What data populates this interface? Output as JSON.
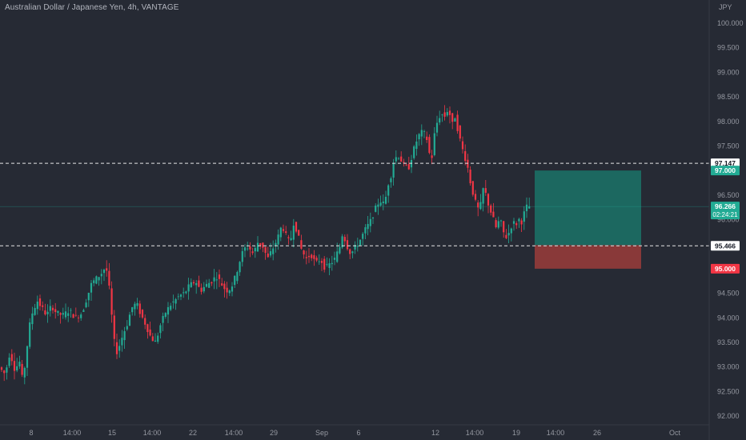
{
  "header": {
    "symbol_title": "Australian Dollar / Japanese Yen, 4h, VANTAGE",
    "currency": "JPY"
  },
  "colors": {
    "background": "#262a34",
    "up": "#22ab94",
    "down": "#f23645",
    "axis_text": "#9598a1",
    "target_zone": "#1b6b63",
    "stop_zone": "#8e3a3a"
  },
  "chart_data": {
    "type": "candlestick",
    "title": "Australian Dollar / Japanese Yen, 4h, VANTAGE",
    "ylabel": "JPY",
    "ylim": [
      91.95,
      100.4
    ],
    "y_ticks": [
      "100.000",
      "99.500",
      "99.000",
      "98.500",
      "98.000",
      "97.500",
      "97.000",
      "96.500",
      "96.000",
      "95.500",
      "95.000",
      "94.500",
      "94.000",
      "93.500",
      "93.000",
      "92.500",
      "92.000"
    ],
    "x_ticks": [
      "8",
      "14:00",
      "15",
      "14:00",
      "22",
      "14:00",
      "29",
      "Sep",
      "6",
      "12",
      "14:00",
      "19",
      "14:00",
      "26",
      "Oct"
    ],
    "price_path": [
      [
        0,
        93.0
      ],
      [
        8,
        92.85
      ],
      [
        14,
        93.3
      ],
      [
        20,
        92.95
      ],
      [
        26,
        93.1
      ],
      [
        30,
        92.7
      ],
      [
        34,
        93.2
      ],
      [
        38,
        93.8
      ],
      [
        42,
        94.1
      ],
      [
        48,
        94.35
      ],
      [
        54,
        94.2
      ],
      [
        60,
        94.05
      ],
      [
        66,
        94.25
      ],
      [
        72,
        94.1
      ],
      [
        80,
        94.05
      ],
      [
        88,
        94.15
      ],
      [
        96,
        94.0
      ],
      [
        104,
        94.1
      ],
      [
        110,
        94.4
      ],
      [
        116,
        94.7
      ],
      [
        122,
        94.8
      ],
      [
        128,
        94.9
      ],
      [
        134,
        95.05
      ],
      [
        138,
        94.6
      ],
      [
        142,
        93.9
      ],
      [
        146,
        93.25
      ],
      [
        150,
        93.4
      ],
      [
        156,
        93.7
      ],
      [
        160,
        93.85
      ],
      [
        166,
        94.2
      ],
      [
        172,
        94.3
      ],
      [
        178,
        94.05
      ],
      [
        184,
        93.85
      ],
      [
        190,
        93.6
      ],
      [
        196,
        93.5
      ],
      [
        202,
        93.85
      ],
      [
        208,
        94.1
      ],
      [
        214,
        94.25
      ],
      [
        220,
        94.35
      ],
      [
        226,
        94.45
      ],
      [
        232,
        94.5
      ],
      [
        238,
        94.65
      ],
      [
        246,
        94.75
      ],
      [
        252,
        94.55
      ],
      [
        258,
        94.65
      ],
      [
        266,
        94.75
      ],
      [
        272,
        94.85
      ],
      [
        278,
        94.7
      ],
      [
        284,
        94.55
      ],
      [
        290,
        94.6
      ],
      [
        296,
        94.85
      ],
      [
        300,
        95.1
      ],
      [
        306,
        95.4
      ],
      [
        312,
        95.45
      ],
      [
        318,
        95.3
      ],
      [
        324,
        95.55
      ],
      [
        330,
        95.45
      ],
      [
        336,
        95.2
      ],
      [
        342,
        95.4
      ],
      [
        348,
        95.6
      ],
      [
        354,
        95.9
      ],
      [
        358,
        95.7
      ],
      [
        364,
        95.5
      ],
      [
        368,
        95.95
      ],
      [
        372,
        95.8
      ],
      [
        378,
        95.4
      ],
      [
        384,
        95.2
      ],
      [
        390,
        95.3
      ],
      [
        396,
        95.1
      ],
      [
        402,
        95.2
      ],
      [
        408,
        95.0
      ],
      [
        414,
        95.1
      ],
      [
        420,
        95.2
      ],
      [
        426,
        95.45
      ],
      [
        430,
        95.75
      ],
      [
        434,
        95.5
      ],
      [
        440,
        95.3
      ],
      [
        446,
        95.45
      ],
      [
        452,
        95.6
      ],
      [
        458,
        95.8
      ],
      [
        464,
        95.95
      ],
      [
        470,
        96.2
      ],
      [
        476,
        96.4
      ],
      [
        482,
        96.3
      ],
      [
        486,
        96.7
      ],
      [
        490,
        96.9
      ],
      [
        494,
        97.25
      ],
      [
        500,
        97.3
      ],
      [
        506,
        97.1
      ],
      [
        512,
        97.05
      ],
      [
        518,
        97.4
      ],
      [
        524,
        97.7
      ],
      [
        530,
        97.8
      ],
      [
        536,
        97.6
      ],
      [
        540,
        97.1
      ],
      [
        544,
        97.7
      ],
      [
        548,
        98.0
      ],
      [
        552,
        98.15
      ],
      [
        558,
        98.1
      ],
      [
        562,
        98.3
      ],
      [
        566,
        97.9
      ],
      [
        570,
        98.1
      ],
      [
        574,
        97.8
      ],
      [
        578,
        97.5
      ],
      [
        582,
        97.3
      ],
      [
        586,
        97.05
      ],
      [
        590,
        96.7
      ],
      [
        594,
        96.45
      ],
      [
        598,
        96.2
      ],
      [
        602,
        96.3
      ],
      [
        606,
        96.7
      ],
      [
        610,
        96.4
      ],
      [
        614,
        96.2
      ],
      [
        618,
        96.0
      ],
      [
        622,
        95.8
      ],
      [
        626,
        96.05
      ],
      [
        630,
        95.75
      ],
      [
        634,
        95.65
      ],
      [
        638,
        95.75
      ],
      [
        642,
        95.95
      ],
      [
        646,
        95.9
      ],
      [
        650,
        96.0
      ],
      [
        654,
        95.95
      ],
      [
        658,
        96.25
      ],
      [
        662,
        96.27
      ]
    ],
    "horizontal_lines": [
      97.147,
      95.466
    ],
    "horizontal_line_labels": [
      "97.147",
      "95.466"
    ],
    "target_zone": {
      "from": 95.48,
      "to": 97.0
    },
    "stop_zone": {
      "from": 95.0,
      "to": 95.48
    },
    "current_price": 96.266,
    "current_price_label": "96.266",
    "countdown_label": "02:24:21",
    "target_label": "97.000",
    "stop_label": "95.000"
  }
}
